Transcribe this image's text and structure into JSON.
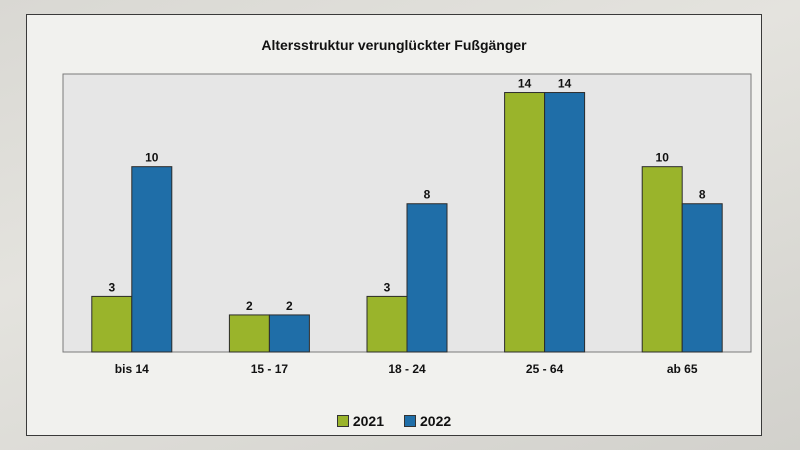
{
  "chart_data": {
    "type": "bar",
    "title": "Altersstruktur verunglückter Fußgänger",
    "categories": [
      "bis 14",
      "15 - 17",
      "18 - 24",
      "25 - 64",
      "ab 65"
    ],
    "series": [
      {
        "name": "2021",
        "values": [
          3,
          2,
          3,
          14,
          10
        ],
        "color": "#9ab42b"
      },
      {
        "name": "2022",
        "values": [
          10,
          2,
          8,
          14,
          8
        ],
        "color": "#1f6ea8"
      }
    ],
    "ylim": [
      0,
      15
    ],
    "grid": false,
    "legend": "bottom-center",
    "data_labels": true,
    "plot_background": "#e6e6e6"
  }
}
